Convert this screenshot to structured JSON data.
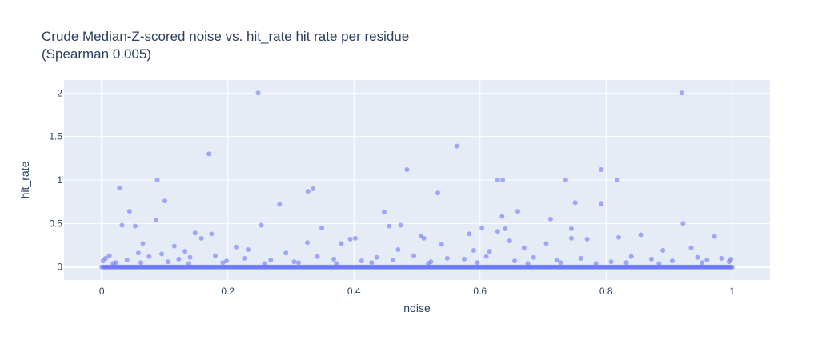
{
  "chart_data": {
    "type": "scatter",
    "title_line1": "Crude Median-Z-scored noise vs. hit_rate hit rate per residue",
    "title_line2": "(Spearman 0.005)",
    "xlabel": "noise",
    "ylabel": "hit_rate",
    "xlim": [
      -0.06,
      1.06
    ],
    "ylim": [
      -0.15,
      2.15
    ],
    "xticks": [
      0,
      0.2,
      0.4,
      0.6,
      0.8,
      1
    ],
    "xtick_labels": [
      "0",
      "0.2",
      "0.4",
      "0.6",
      "0.8",
      "1"
    ],
    "yticks": [
      0,
      0.5,
      1,
      1.5,
      2
    ],
    "ytick_labels": [
      "0",
      "0.5",
      "1",
      "1.5",
      "2"
    ],
    "grid": true,
    "colors": {
      "marker": "#636efa",
      "plot_bg": "#e5ecf6",
      "grid": "#ffffff",
      "text": "#2a3f5f"
    },
    "points": {
      "x": [
        0.248,
        0.92,
        0.17,
        0.563,
        0.484,
        0.792,
        0.088,
        0.736,
        0.628,
        0.636,
        0.818,
        0.335,
        0.327,
        0.028,
        0.533,
        0.1,
        0.751,
        0.792,
        0.282,
        0.66,
        0.044,
        0.635,
        0.712,
        0.448,
        0.253,
        0.922,
        0.032,
        0.086,
        0.053,
        0.474,
        0.456,
        0.745,
        0.349,
        0.64,
        0.583,
        0.628,
        0.148,
        0.174,
        0.603,
        0.745,
        0.855,
        0.972,
        0.402,
        0.394,
        0.506,
        0.511,
        0.065,
        0.647,
        0.77,
        0.326,
        0.158,
        0.539,
        0.38,
        0.213,
        0.67,
        0.59,
        0.615,
        0.47,
        0.705,
        0.82,
        0.935,
        0.89,
        0.058,
        0.115,
        0.095,
        0.132,
        0.18,
        0.232,
        0.292,
        0.012,
        0.002,
        0.006,
        0.022,
        0.04,
        0.075,
        0.105,
        0.122,
        0.14,
        0.198,
        0.226,
        0.268,
        0.305,
        0.342,
        0.368,
        0.412,
        0.436,
        0.462,
        0.495,
        0.522,
        0.548,
        0.575,
        0.61,
        0.655,
        0.685,
        0.722,
        0.76,
        0.808,
        0.84,
        0.872,
        0.905,
        0.945,
        0.96,
        0.983,
        0.995,
        0.998,
        0.018,
        0.062,
        0.138,
        0.192,
        0.258,
        0.312,
        0.372,
        0.428,
        0.518,
        0.596,
        0.676,
        0.728,
        0.784,
        0.832,
        0.884,
        0.952
      ],
      "y": [
        2.0,
        2.0,
        1.3,
        1.39,
        1.12,
        1.12,
        1.0,
        1.0,
        1.0,
        1.0,
        1.0,
        0.9,
        0.87,
        0.91,
        0.85,
        0.76,
        0.74,
        0.73,
        0.72,
        0.64,
        0.64,
        0.58,
        0.55,
        0.63,
        0.48,
        0.5,
        0.48,
        0.54,
        0.47,
        0.48,
        0.47,
        0.44,
        0.45,
        0.44,
        0.38,
        0.41,
        0.39,
        0.38,
        0.45,
        0.33,
        0.37,
        0.35,
        0.33,
        0.32,
        0.36,
        0.33,
        0.27,
        0.3,
        0.32,
        0.28,
        0.33,
        0.26,
        0.27,
        0.23,
        0.22,
        0.19,
        0.18,
        0.2,
        0.27,
        0.34,
        0.22,
        0.19,
        0.16,
        0.24,
        0.15,
        0.18,
        0.13,
        0.2,
        0.16,
        0.13,
        0.07,
        0.1,
        0.05,
        0.08,
        0.12,
        0.06,
        0.09,
        0.11,
        0.07,
        0.1,
        0.08,
        0.06,
        0.12,
        0.09,
        0.07,
        0.11,
        0.08,
        0.13,
        0.06,
        0.1,
        0.09,
        0.12,
        0.07,
        0.11,
        0.08,
        0.1,
        0.06,
        0.12,
        0.09,
        0.07,
        0.11,
        0.08,
        0.1,
        0.06,
        0.09,
        0.04,
        0.05,
        0.04,
        0.05,
        0.04,
        0.05,
        0.04,
        0.05,
        0.04,
        0.05,
        0.04,
        0.05,
        0.04,
        0.05,
        0.04,
        0.05
      ]
    }
  }
}
